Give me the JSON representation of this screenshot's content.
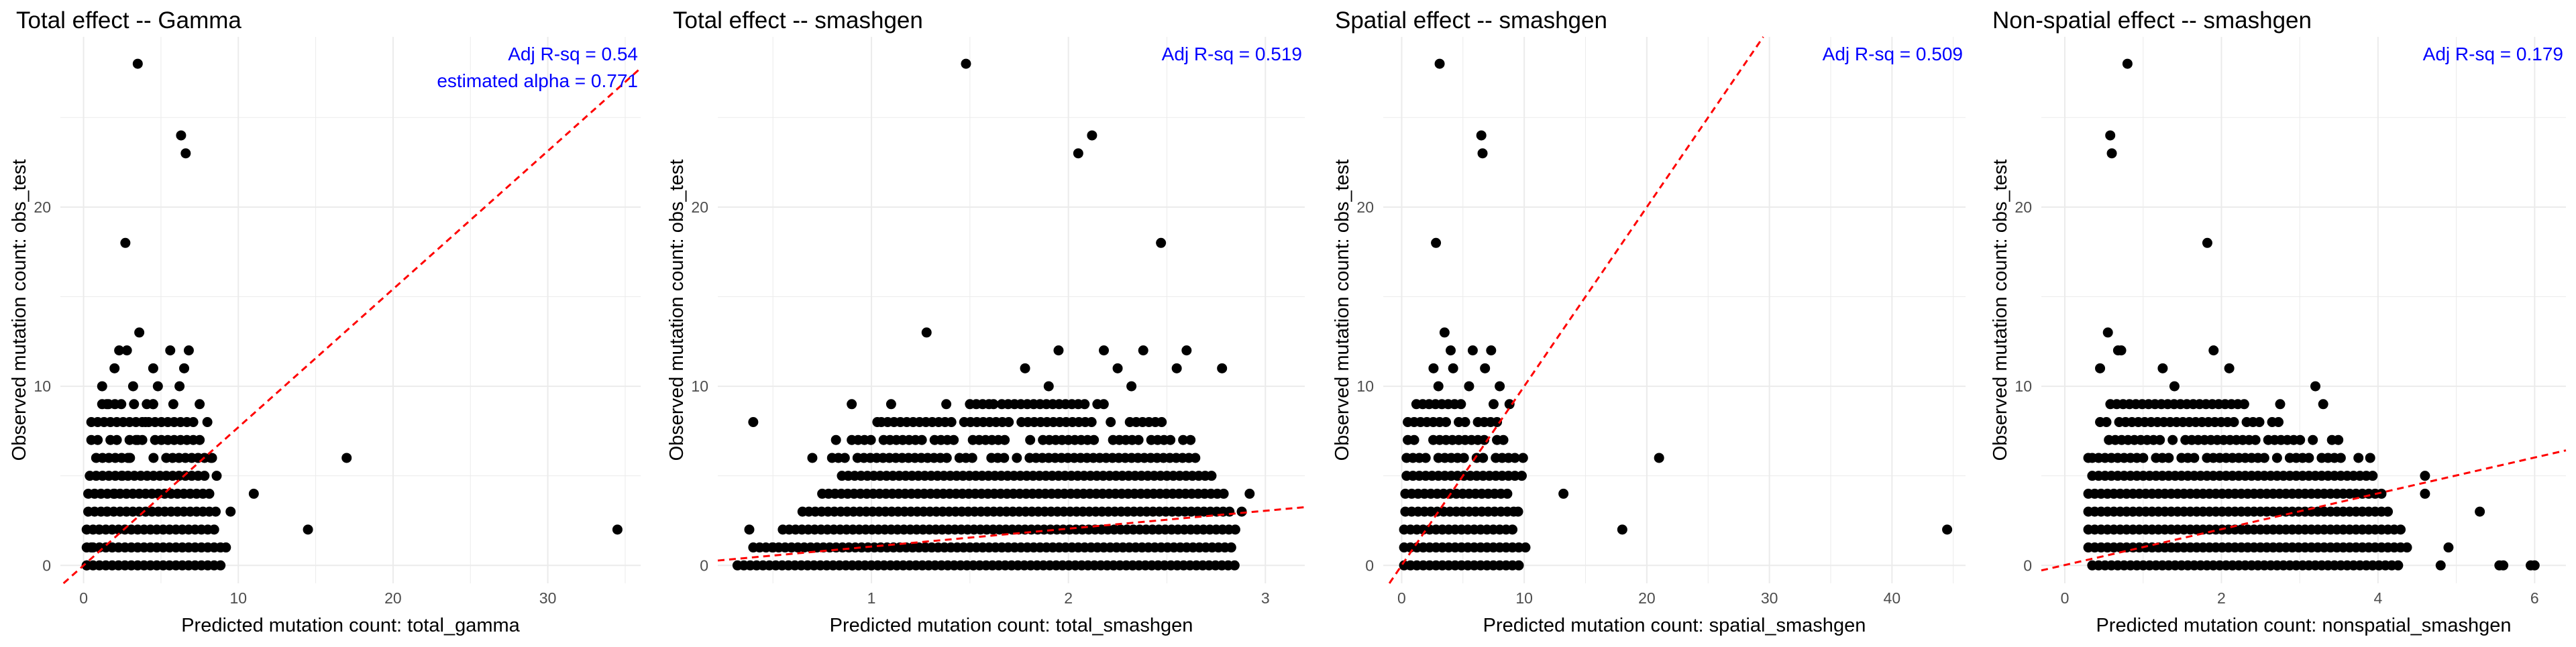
{
  "colors": {
    "point": "#000000",
    "fit_line": "#ff0000",
    "annotation": "#0000ff",
    "grid": "#ebebeb"
  },
  "chart_data": [
    {
      "type": "scatter",
      "title": "Total effect -- Gamma",
      "xlabel": "Predicted mutation count: total_gamma",
      "ylabel": "Observed mutation count: obs_test",
      "xlim": [
        -1.5,
        36
      ],
      "ylim": [
        -1,
        29.5
      ],
      "xticks": [
        0,
        10,
        20,
        30
      ],
      "yticks": [
        0,
        10,
        20
      ],
      "grid": true,
      "fit_line": {
        "intercept": 0,
        "slope": 0.771
      },
      "annotations": [
        "Adj R-sq = 0.54",
        "estimated alpha = 0.771"
      ],
      "points": [
        [
          0.2,
          0
        ],
        [
          0.5,
          1
        ],
        [
          1.0,
          2
        ],
        [
          1.5,
          3
        ],
        [
          2.0,
          4
        ],
        [
          2.5,
          5
        ],
        [
          3.0,
          6
        ],
        [
          3.5,
          7
        ],
        [
          4.0,
          8
        ],
        [
          4.5,
          9
        ],
        [
          1.2,
          10
        ],
        [
          2.0,
          11
        ],
        [
          2.8,
          12
        ],
        [
          3.6,
          13
        ],
        [
          5.6,
          12
        ],
        [
          6.5,
          11
        ],
        [
          6.8,
          12
        ],
        [
          3.5,
          28
        ],
        [
          2.7,
          18
        ],
        [
          6.3,
          24
        ],
        [
          6.6,
          23
        ],
        [
          17,
          6
        ],
        [
          34.5,
          2
        ],
        [
          14.5,
          2
        ],
        [
          11,
          4
        ],
        [
          9.5,
          3
        ],
        [
          9.2,
          1
        ],
        [
          4.5,
          11
        ],
        [
          2.3,
          12
        ],
        [
          3.2,
          10
        ],
        [
          1.5,
          9
        ],
        [
          6.2,
          10
        ],
        [
          5.8,
          9
        ],
        [
          7.5,
          9
        ],
        [
          8.0,
          8
        ],
        [
          8.6,
          5
        ],
        [
          8.3,
          6
        ],
        [
          4.8,
          10
        ]
      ],
      "bands": [
        {
          "y": 0,
          "x0": 0.2,
          "x1": 9.0
        },
        {
          "y": 1,
          "x0": 0.2,
          "x1": 9.2
        },
        {
          "y": 2,
          "x0": 0.2,
          "x1": 8.8
        },
        {
          "y": 3,
          "x0": 0.3,
          "x1": 8.9
        },
        {
          "y": 4,
          "x0": 0.3,
          "x1": 8.5
        },
        {
          "y": 5,
          "x0": 0.4,
          "x1": 8.2
        },
        {
          "y": 6,
          "x0": 0.4,
          "x1": 8.3
        },
        {
          "y": 7,
          "x0": 0.5,
          "x1": 7.8
        },
        {
          "y": 8,
          "x0": 0.5,
          "x1": 7.5
        },
        {
          "y": 9,
          "x0": 1.2,
          "x1": 5.3
        }
      ]
    },
    {
      "type": "scatter",
      "title": "Total effect -- smashgen",
      "xlabel": "Predicted mutation count: total_smashgen",
      "ylabel": "Observed mutation count: obs_test",
      "xlim": [
        0.22,
        3.2
      ],
      "ylim": [
        -1,
        29.5
      ],
      "xticks": [
        1,
        2,
        3
      ],
      "yticks": [
        0,
        10,
        20
      ],
      "grid": true,
      "fit_line": {
        "intercept": 0.05,
        "slope": 1.0
      },
      "annotations": [
        "Adj R-sq = 0.519"
      ],
      "points": [
        [
          1.48,
          28
        ],
        [
          2.12,
          24
        ],
        [
          2.05,
          23
        ],
        [
          2.47,
          18
        ],
        [
          1.28,
          13
        ],
        [
          2.18,
          12
        ],
        [
          2.38,
          12
        ],
        [
          2.25,
          11
        ],
        [
          1.95,
          12
        ],
        [
          1.78,
          11
        ],
        [
          2.6,
          12
        ],
        [
          2.78,
          11
        ],
        [
          1.1,
          9
        ],
        [
          0.9,
          9
        ],
        [
          1.03,
          8
        ],
        [
          0.5,
          1
        ],
        [
          0.4,
          8
        ],
        [
          2.92,
          4
        ],
        [
          2.88,
          3
        ],
        [
          2.62,
          7
        ],
        [
          0.7,
          6
        ],
        [
          0.82,
          7
        ],
        [
          1.62,
          9
        ],
        [
          1.38,
          9
        ],
        [
          2.55,
          11
        ],
        [
          1.9,
          10
        ],
        [
          2.32,
          10
        ],
        [
          0.38,
          2
        ]
      ],
      "bands": [
        {
          "y": 0,
          "x0": 0.32,
          "x1": 2.85
        },
        {
          "y": 1,
          "x0": 0.4,
          "x1": 2.85
        },
        {
          "y": 2,
          "x0": 0.55,
          "x1": 2.85
        },
        {
          "y": 3,
          "x0": 0.65,
          "x1": 2.85
        },
        {
          "y": 4,
          "x0": 0.75,
          "x1": 2.8
        },
        {
          "y": 5,
          "x0": 0.85,
          "x1": 2.75
        },
        {
          "y": 6,
          "x0": 0.8,
          "x1": 2.7
        },
        {
          "y": 7,
          "x0": 0.9,
          "x1": 2.6
        },
        {
          "y": 8,
          "x0": 1.05,
          "x1": 2.5
        },
        {
          "y": 9,
          "x0": 1.5,
          "x1": 2.2
        }
      ]
    },
    {
      "type": "scatter",
      "title": "Spatial effect -- smashgen",
      "xlabel": "Predicted mutation count: spatial_smashgen",
      "ylabel": "Observed mutation count: obs_test",
      "xlim": [
        -1.5,
        46
      ],
      "ylim": [
        -1,
        29.5
      ],
      "xticks": [
        0,
        10,
        20,
        30,
        40
      ],
      "yticks": [
        0,
        10,
        20
      ],
      "grid": true,
      "fit_line": {
        "intercept": 0,
        "slope": 1.0
      },
      "annotations": [
        "Adj R-sq = 0.509"
      ],
      "points": [
        [
          3.1,
          28
        ],
        [
          6.5,
          24
        ],
        [
          6.6,
          23
        ],
        [
          2.8,
          18
        ],
        [
          3.5,
          13
        ],
        [
          4.0,
          12
        ],
        [
          5.8,
          12
        ],
        [
          7.3,
          12
        ],
        [
          4.2,
          11
        ],
        [
          2.6,
          11
        ],
        [
          6.8,
          11
        ],
        [
          8.0,
          10
        ],
        [
          8.8,
          9
        ],
        [
          7.5,
          9
        ],
        [
          21,
          6
        ],
        [
          44.5,
          2
        ],
        [
          18,
          2
        ],
        [
          13.2,
          4
        ],
        [
          9.5,
          3
        ],
        [
          9.8,
          5
        ],
        [
          9.9,
          6
        ],
        [
          10.1,
          1
        ],
        [
          5.5,
          10
        ],
        [
          3.0,
          10
        ]
      ],
      "bands": [
        {
          "y": 0,
          "x0": 0.2,
          "x1": 9.8
        },
        {
          "y": 1,
          "x0": 0.2,
          "x1": 9.9
        },
        {
          "y": 2,
          "x0": 0.2,
          "x1": 9.5
        },
        {
          "y": 3,
          "x0": 0.3,
          "x1": 9.2
        },
        {
          "y": 4,
          "x0": 0.3,
          "x1": 9.0
        },
        {
          "y": 5,
          "x0": 0.4,
          "x1": 9.3
        },
        {
          "y": 6,
          "x0": 0.4,
          "x1": 9.4
        },
        {
          "y": 7,
          "x0": 0.5,
          "x1": 8.5
        },
        {
          "y": 8,
          "x0": 0.5,
          "x1": 8.0
        },
        {
          "y": 9,
          "x0": 1.2,
          "x1": 5.0
        }
      ]
    },
    {
      "type": "scatter",
      "title": "Non-spatial effect -- smashgen",
      "xlabel": "Predicted mutation count: nonspatial_smashgen",
      "ylabel": "Observed mutation count: obs_test",
      "xlim": [
        -0.3,
        6.4
      ],
      "ylim": [
        -1,
        29.5
      ],
      "xticks": [
        0,
        2,
        4,
        6
      ],
      "yticks": [
        0,
        10,
        20
      ],
      "grid": true,
      "fit_line": {
        "intercept": 0.02,
        "slope": 1.0
      },
      "annotations": [
        "Adj R-sq = 0.179"
      ],
      "points": [
        [
          0.8,
          28
        ],
        [
          0.58,
          24
        ],
        [
          0.6,
          23
        ],
        [
          1.82,
          18
        ],
        [
          0.55,
          13
        ],
        [
          0.68,
          12
        ],
        [
          0.72,
          12
        ],
        [
          1.9,
          12
        ],
        [
          2.1,
          11
        ],
        [
          0.45,
          11
        ],
        [
          1.25,
          11
        ],
        [
          2.75,
          9
        ],
        [
          3.3,
          9
        ],
        [
          4.6,
          5
        ],
        [
          4.6,
          4
        ],
        [
          5.3,
          3
        ],
        [
          5.55,
          0
        ],
        [
          5.6,
          0
        ],
        [
          5.95,
          0
        ],
        [
          6.0,
          0
        ],
        [
          3.2,
          10
        ],
        [
          1.4,
          10
        ],
        [
          4.8,
          0
        ],
        [
          4.9,
          1
        ],
        [
          3.9,
          6
        ],
        [
          3.75,
          6
        ],
        [
          0.3,
          6
        ]
      ],
      "bands": [
        {
          "y": 0,
          "x0": 0.35,
          "x1": 4.3
        },
        {
          "y": 1,
          "x0": 0.3,
          "x1": 4.4
        },
        {
          "y": 2,
          "x0": 0.3,
          "x1": 4.3
        },
        {
          "y": 3,
          "x0": 0.3,
          "x1": 4.2
        },
        {
          "y": 4,
          "x0": 0.3,
          "x1": 4.1
        },
        {
          "y": 5,
          "x0": 0.35,
          "x1": 4.0
        },
        {
          "y": 6,
          "x0": 0.35,
          "x1": 3.6
        },
        {
          "y": 7,
          "x0": 0.4,
          "x1": 3.5
        },
        {
          "y": 8,
          "x0": 0.45,
          "x1": 2.8
        },
        {
          "y": 9,
          "x0": 0.5,
          "x1": 2.3
        }
      ]
    }
  ]
}
